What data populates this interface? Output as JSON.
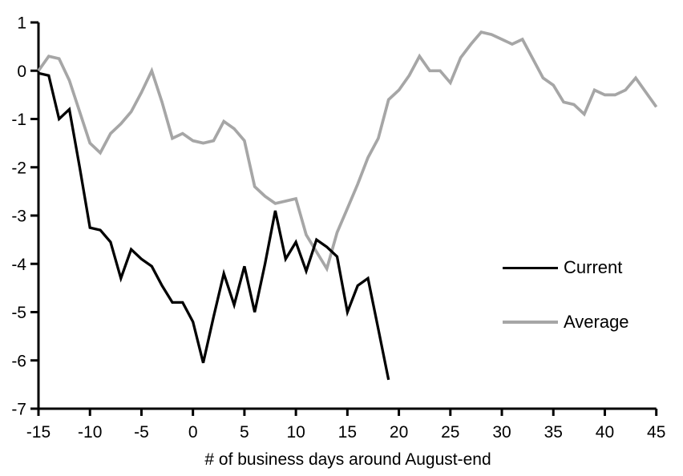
{
  "chart_data": {
    "type": "line",
    "title": "",
    "xlabel": "# of business days around August-end",
    "ylabel": "",
    "xlim": [
      -15,
      45
    ],
    "ylim": [
      -7,
      1
    ],
    "x_ticks": [
      -15,
      -10,
      -5,
      0,
      5,
      10,
      15,
      20,
      25,
      30,
      35,
      40,
      45
    ],
    "y_ticks": [
      1,
      0,
      -1,
      -2,
      -3,
      -4,
      -5,
      -6,
      -7
    ],
    "grid": false,
    "legend_position": "right-center",
    "series": [
      {
        "name": "Current",
        "color": "#000000",
        "x": [
          -15,
          -14,
          -13,
          -12,
          -11,
          -10,
          -9,
          -8,
          -7,
          -6,
          -5,
          -4,
          -3,
          -2,
          -1,
          0,
          1,
          2,
          3,
          4,
          5,
          6,
          7,
          8,
          9,
          10,
          11,
          12,
          13,
          14,
          15,
          16,
          17,
          18,
          19
        ],
        "values": [
          -0.05,
          -0.1,
          -1.0,
          -0.8,
          -2.0,
          -3.25,
          -3.3,
          -3.55,
          -4.3,
          -3.7,
          -3.9,
          -4.05,
          -4.45,
          -4.8,
          -4.8,
          -5.2,
          -6.05,
          -5.1,
          -4.2,
          -4.85,
          -4.05,
          -5.0,
          -4.0,
          -2.9,
          -3.9,
          -3.55,
          -4.15,
          -3.5,
          -3.65,
          -3.85,
          -5.0,
          -4.45,
          -4.3,
          -5.35,
          -6.4
        ]
      },
      {
        "name": "Average",
        "color": "#a6a6a6",
        "x": [
          -15,
          -14,
          -13,
          -12,
          -11,
          -10,
          -9,
          -8,
          -7,
          -6,
          -5,
          -4,
          -3,
          -2,
          -1,
          0,
          1,
          2,
          3,
          4,
          5,
          6,
          7,
          8,
          9,
          10,
          11,
          12,
          13,
          14,
          15,
          16,
          17,
          18,
          19,
          20,
          21,
          22,
          23,
          24,
          25,
          26,
          27,
          28,
          29,
          30,
          31,
          32,
          33,
          34,
          35,
          36,
          37,
          38,
          39,
          40,
          41,
          42,
          43,
          44,
          45
        ],
        "values": [
          0.0,
          0.3,
          0.25,
          -0.2,
          -0.85,
          -1.5,
          -1.7,
          -1.3,
          -1.1,
          -0.85,
          -0.45,
          0.0,
          -0.65,
          -1.4,
          -1.3,
          -1.45,
          -1.5,
          -1.45,
          -1.05,
          -1.2,
          -1.45,
          -2.4,
          -2.6,
          -2.75,
          -2.7,
          -2.65,
          -3.4,
          -3.75,
          -4.1,
          -3.35,
          -2.85,
          -2.35,
          -1.8,
          -1.4,
          -0.6,
          -0.4,
          -0.1,
          0.3,
          0.0,
          0.0,
          -0.25,
          0.27,
          0.55,
          0.8,
          0.75,
          0.65,
          0.55,
          0.65,
          0.25,
          -0.15,
          -0.3,
          -0.65,
          -0.7,
          -0.9,
          -0.4,
          -0.5,
          -0.5,
          -0.4,
          -0.15,
          -0.45,
          -0.75
        ]
      }
    ]
  },
  "legend": {
    "items": [
      {
        "label": "Current",
        "color": "#000000"
      },
      {
        "label": "Average",
        "color": "#a6a6a6"
      }
    ]
  },
  "colors": {
    "background": "#ffffff",
    "axis": "#000000",
    "current_line": "#000000",
    "average_line": "#a6a6a6"
  }
}
